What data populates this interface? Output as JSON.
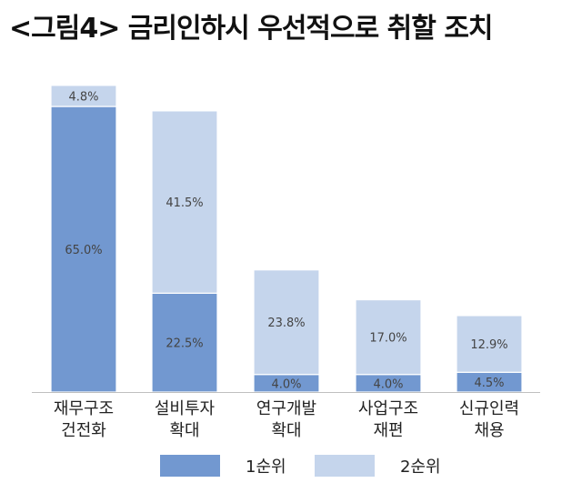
{
  "title": "<그림4> 금리인하시 우선적으로 취할 조치",
  "colors": {
    "rank1": "#7298d0",
    "rank2": "#c5d5ec",
    "axis": "#bfbfbf",
    "label": "#444444"
  },
  "legend": {
    "rank1_label": "1순위",
    "rank2_label": "2순위"
  },
  "chart_data": {
    "type": "bar",
    "stacked": true,
    "categories": [
      [
        "재무구조",
        "건전화"
      ],
      [
        "설비투자",
        "확대"
      ],
      [
        "연구개발",
        "확대"
      ],
      [
        "사업구조",
        "재편"
      ],
      [
        "신규인력",
        "채용"
      ]
    ],
    "series": [
      {
        "name": "1순위",
        "values": [
          65.0,
          22.5,
          4.0,
          4.0,
          4.5
        ],
        "labels": [
          "65.0%",
          "22.5%",
          "4.0%",
          "4.0%",
          "4.5%"
        ]
      },
      {
        "name": "2순위",
        "values": [
          4.8,
          41.5,
          23.8,
          17.0,
          12.9
        ],
        "labels": [
          "4.8%",
          "41.5%",
          "23.8%",
          "17.0%",
          "12.9%"
        ]
      }
    ],
    "ylim": [
      0,
      70
    ],
    "grid": false,
    "legend_position": "bottom"
  }
}
